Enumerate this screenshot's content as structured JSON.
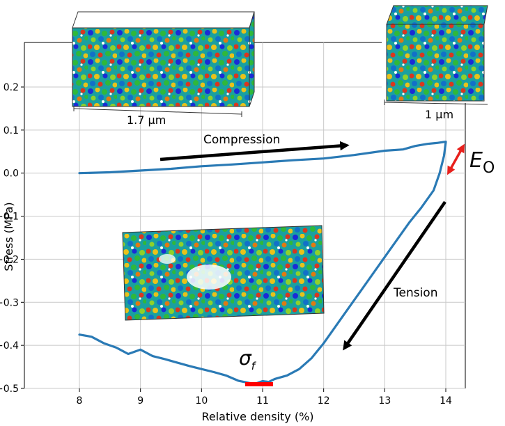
{
  "chart_data": {
    "type": "line",
    "xlabel": "Relative density (%)",
    "ylabel": "Stress (MPa)",
    "xlim": [
      7.9,
      14.3
    ],
    "ylim": [
      -0.5,
      0.2
    ],
    "xticks": [
      8,
      9,
      10,
      11,
      12,
      13,
      14
    ],
    "yticks": [
      0.2,
      0.1,
      0.0,
      -0.1,
      -0.2,
      -0.3,
      -0.4,
      -0.5
    ],
    "ytick_labels": [
      "0.2",
      "0.1",
      "0.0",
      "−0.1",
      "−0.2",
      "−0.3",
      "−0.4",
      "−0.5"
    ],
    "grid": true,
    "series": [
      {
        "color": "#2a7ab5",
        "x": [
          8.0,
          8.5,
          9.0,
          9.5,
          10.0,
          10.5,
          11.0,
          11.5,
          12.0,
          12.5,
          13.0,
          13.3,
          13.5,
          13.7,
          13.85,
          14.0,
          14.0,
          13.97,
          13.9,
          13.8,
          13.6,
          13.4,
          13.2,
          13.0,
          12.8,
          12.6,
          12.4,
          12.2,
          12.0,
          11.8,
          11.6,
          11.4,
          11.2,
          11.1,
          11.0,
          10.9,
          10.8,
          10.6,
          10.4,
          10.2,
          10.0,
          9.8,
          9.6,
          9.4,
          9.2,
          9.0,
          8.8,
          8.6,
          8.4,
          8.2,
          8.0
        ],
        "y": [
          0.0,
          0.002,
          0.006,
          0.01,
          0.016,
          0.02,
          0.025,
          0.03,
          0.034,
          0.042,
          0.052,
          0.055,
          0.063,
          0.068,
          0.07,
          0.073,
          0.072,
          0.04,
          0.0,
          -0.04,
          -0.08,
          -0.115,
          -0.155,
          -0.195,
          -0.235,
          -0.275,
          -0.315,
          -0.355,
          -0.395,
          -0.43,
          -0.455,
          -0.47,
          -0.478,
          -0.485,
          -0.483,
          -0.488,
          -0.488,
          -0.482,
          -0.47,
          -0.462,
          -0.455,
          -0.448,
          -0.44,
          -0.432,
          -0.425,
          -0.41,
          -0.42,
          -0.405,
          -0.395,
          -0.38,
          -0.375
        ]
      }
    ],
    "annotations": {
      "compression": "Compression",
      "tension": "Tension",
      "modulus_symbol": "E",
      "modulus_subscript": "O",
      "strength_symbol": "σ",
      "strength_subscript": "f",
      "scale_top_left": "1.7 µm",
      "scale_top_right": "1 µm"
    },
    "colors": {
      "line": "#2a7ab5",
      "arrow": "#000000",
      "highlight": "#ff0000"
    }
  }
}
